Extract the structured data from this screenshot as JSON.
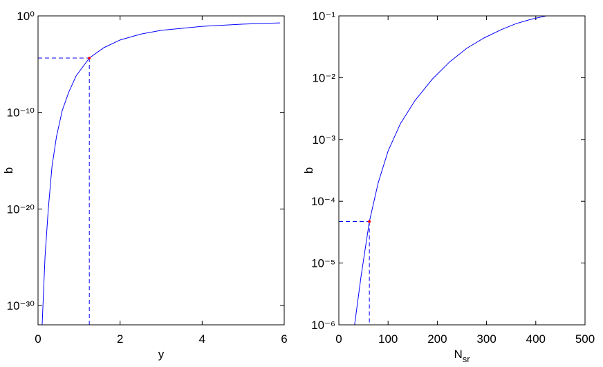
{
  "chart_data": [
    {
      "type": "line",
      "log_y": true,
      "xlabel": {
        "text": "y"
      },
      "ylabel": "b",
      "xlim": [
        0,
        6
      ],
      "xticks": [
        0,
        2,
        4,
        6
      ],
      "ylim": [
        1e-32,
        1
      ],
      "yticks": [
        {
          "value": 1,
          "label": "10⁰"
        },
        {
          "value": 1e-10,
          "label": "10⁻¹⁰"
        },
        {
          "value": 1e-20,
          "label": "10⁻²⁰"
        },
        {
          "value": 1e-30,
          "label": "10⁻³⁰"
        }
      ],
      "series": [
        {
          "color": "#0000ff",
          "x": [
            0.1,
            0.17,
            0.25,
            0.34,
            0.45,
            0.59,
            0.75,
            0.93,
            1.25,
            1.6,
            2,
            2.5,
            3,
            4,
            5,
            5.9
          ],
          "values": [
            1e-32,
            1e-25,
            1e-20,
            2.5e-16,
            3.2e-13,
            1.6e-10,
            1.3e-08,
            6.3e-07,
            4.3e-05,
            0.0005,
            0.0032,
            0.013,
            0.032,
            0.083,
            0.14,
            0.19
          ]
        }
      ],
      "highlight": {
        "x": 1.25,
        "y": 4.3e-05,
        "color": "#ff0000",
        "guide_color": "#0000ff"
      }
    },
    {
      "type": "line",
      "log_y": true,
      "xlabel": {
        "text": "N",
        "subscript": "sr"
      },
      "ylabel": "b",
      "xlim": [
        0,
        500
      ],
      "xticks": [
        0,
        100,
        200,
        300,
        400,
        500
      ],
      "ylim": [
        1e-06,
        0.1
      ],
      "yticks": [
        {
          "value": 0.1,
          "label": "10⁻¹"
        },
        {
          "value": 0.01,
          "label": "10⁻²"
        },
        {
          "value": 0.001,
          "label": "10⁻³"
        },
        {
          "value": 0.0001,
          "label": "10⁻⁴"
        },
        {
          "value": 1e-05,
          "label": "10⁻⁵"
        },
        {
          "value": 1e-06,
          "label": "10⁻⁶"
        }
      ],
      "series": [
        {
          "color": "#0000ff",
          "x": [
            32,
            45,
            62,
            80,
            100,
            125,
            155,
            190,
            225,
            260,
            295,
            330,
            360,
            390,
            421
          ],
          "values": [
            1e-06,
            6e-06,
            4.7e-05,
            0.0002,
            0.00065,
            0.0018,
            0.0043,
            0.0095,
            0.018,
            0.03,
            0.044,
            0.06,
            0.075,
            0.088,
            0.1
          ]
        }
      ],
      "highlight": {
        "x": 62,
        "y": 4.7e-05,
        "color": "#ff0000",
        "guide_color": "#0000ff"
      }
    }
  ]
}
